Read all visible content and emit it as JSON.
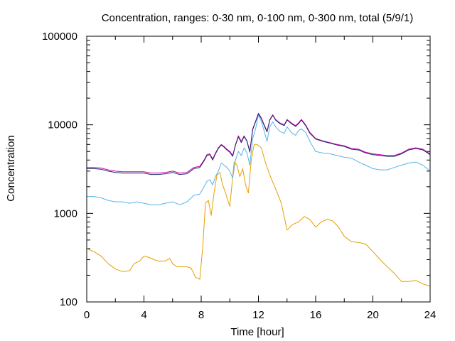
{
  "chart_data": {
    "type": "line",
    "title": "Concentration, ranges: 0-30 nm, 0-100 nm, 0-300 nm, total (5/9/1)",
    "xlabel": "Time [hour]",
    "ylabel": "Concentration",
    "xlim": [
      0,
      24
    ],
    "ylim": [
      100,
      100000
    ],
    "yscale": "log",
    "xticks": [
      0,
      4,
      8,
      12,
      16,
      20,
      24
    ],
    "xtick_labels": [
      "0",
      "4",
      "8",
      "12",
      "16",
      "20",
      "24"
    ],
    "yticks": [
      100,
      1000,
      10000,
      100000
    ],
    "ytick_labels": [
      "100",
      "1000",
      "10000",
      "100000"
    ],
    "grid": false,
    "legend": "none",
    "series": [
      {
        "color": "#e69f00",
        "x": [
          0,
          0.5,
          1,
          1.5,
          2,
          2.5,
          3,
          3.3,
          3.7,
          4,
          4.3,
          4.7,
          5,
          5.5,
          5.8,
          6,
          6.3,
          6.6,
          7,
          7.3,
          7.6,
          7.9,
          8.1,
          8.3,
          8.5,
          8.7,
          8.9,
          9.1,
          9.3,
          9.5,
          9.7,
          10,
          10.3,
          10.5,
          10.7,
          10.9,
          11.1,
          11.3,
          11.5,
          11.7,
          11.9,
          12.2,
          12.5,
          12.8,
          13.2,
          13.6,
          14,
          14.4,
          14.8,
          15.2,
          15.6,
          16,
          16.4,
          16.8,
          17.2,
          17.6,
          18,
          18.5,
          19,
          19.5,
          20,
          20.5,
          21,
          21.5,
          22,
          22.5,
          23,
          23.5,
          24
        ],
        "y": [
          400,
          370,
          330,
          270,
          235,
          220,
          225,
          270,
          290,
          330,
          320,
          300,
          290,
          290,
          310,
          270,
          250,
          250,
          250,
          240,
          190,
          180,
          400,
          1300,
          1400,
          950,
          1700,
          2700,
          2900,
          2100,
          1700,
          1200,
          3800,
          3500,
          2600,
          3200,
          2100,
          1700,
          4000,
          6000,
          6000,
          5500,
          3700,
          2700,
          1900,
          1300,
          650,
          750,
          800,
          920,
          850,
          700,
          800,
          860,
          820,
          700,
          550,
          480,
          470,
          450,
          370,
          300,
          250,
          210,
          170,
          170,
          175,
          160,
          150
        ]
      },
      {
        "color": "#56b4e9",
        "x": [
          0,
          0.5,
          1,
          1.5,
          2,
          2.5,
          3,
          3.5,
          4,
          4.5,
          5,
          5.5,
          6,
          6.5,
          7,
          7.5,
          7.9,
          8.2,
          8.4,
          8.6,
          8.8,
          9,
          9.2,
          9.4,
          9.6,
          9.8,
          10,
          10.2,
          10.4,
          10.6,
          10.8,
          11,
          11.2,
          11.4,
          11.6,
          11.8,
          12,
          12.2,
          12.4,
          12.6,
          12.8,
          13,
          13.2,
          13.5,
          13.8,
          14,
          14.3,
          14.6,
          14.8,
          15,
          15.3,
          15.6,
          16,
          16.5,
          17,
          17.5,
          18,
          18.5,
          19,
          19.5,
          20,
          20.5,
          21,
          21.5,
          22,
          22.5,
          23,
          23.5,
          24
        ],
        "y": [
          1550,
          1550,
          1500,
          1400,
          1350,
          1350,
          1300,
          1350,
          1300,
          1250,
          1250,
          1300,
          1350,
          1250,
          1350,
          1600,
          1650,
          2000,
          2300,
          2400,
          2100,
          2600,
          3000,
          3700,
          3500,
          3300,
          3000,
          2500,
          4000,
          5000,
          4500,
          5500,
          4800,
          3500,
          7000,
          9000,
          13000,
          11000,
          8500,
          6500,
          9500,
          10800,
          9500,
          8400,
          8000,
          9500,
          8200,
          7600,
          8600,
          9000,
          8200,
          6500,
          5000,
          4800,
          4700,
          4500,
          4300,
          4200,
          3800,
          3500,
          3200,
          3100,
          3100,
          3300,
          3500,
          3700,
          3800,
          3500,
          3000
        ]
      },
      {
        "color": "#d000b0",
        "x": [
          0,
          0.5,
          1,
          1.5,
          2,
          2.5,
          3,
          3.5,
          4,
          4.5,
          5,
          5.5,
          6,
          6.5,
          7,
          7.5,
          7.9,
          8.2,
          8.4,
          8.6,
          8.8,
          9,
          9.2,
          9.4,
          9.6,
          9.8,
          10,
          10.2,
          10.4,
          10.6,
          10.8,
          11,
          11.2,
          11.4,
          11.6,
          11.8,
          12,
          12.2,
          12.4,
          12.6,
          12.8,
          13,
          13.2,
          13.5,
          13.8,
          14,
          14.3,
          14.6,
          14.8,
          15,
          15.3,
          15.6,
          16,
          16.5,
          17,
          17.5,
          18,
          18.5,
          19,
          19.5,
          20,
          20.5,
          21,
          21.5,
          22,
          22.5,
          23,
          23.5,
          24
        ],
        "y": [
          3300,
          3300,
          3250,
          3100,
          3000,
          2950,
          2950,
          2950,
          2950,
          2850,
          2850,
          2900,
          3000,
          2850,
          2900,
          3300,
          3400,
          4000,
          4600,
          4700,
          4100,
          4800,
          5500,
          6000,
          5700,
          5300,
          5000,
          4500,
          6000,
          7500,
          6500,
          7500,
          6600,
          5000,
          9000,
          11000,
          13500,
          12000,
          10000,
          8500,
          11500,
          13000,
          11500,
          10500,
          10000,
          11500,
          10500,
          9800,
          10500,
          11500,
          10000,
          8200,
          7000,
          6600,
          6300,
          6000,
          5800,
          5400,
          5300,
          4900,
          4700,
          4600,
          4500,
          4500,
          4800,
          5300,
          5500,
          5300,
          4700
        ]
      },
      {
        "color": "#1f2a6b",
        "x": [
          0,
          0.5,
          1,
          1.5,
          2,
          2.5,
          3,
          3.5,
          4,
          4.5,
          5,
          5.5,
          6,
          6.5,
          7,
          7.5,
          7.9,
          8.2,
          8.4,
          8.6,
          8.8,
          9,
          9.2,
          9.4,
          9.6,
          9.8,
          10,
          10.2,
          10.4,
          10.6,
          10.8,
          11,
          11.2,
          11.4,
          11.6,
          11.8,
          12,
          12.2,
          12.4,
          12.6,
          12.8,
          13,
          13.2,
          13.5,
          13.8,
          14,
          14.3,
          14.6,
          14.8,
          15,
          15.3,
          15.6,
          16,
          16.5,
          17,
          17.5,
          18,
          18.5,
          19,
          19.5,
          20,
          20.5,
          21,
          21.5,
          22,
          22.5,
          23,
          23.5,
          24
        ],
        "y": [
          3200,
          3200,
          3150,
          3000,
          2900,
          2850,
          2850,
          2850,
          2850,
          2750,
          2750,
          2800,
          2900,
          2750,
          2800,
          3200,
          3300,
          3900,
          4500,
          4600,
          4000,
          4700,
          5400,
          5900,
          5600,
          5200,
          4900,
          4400,
          5900,
          7300,
          6300,
          7400,
          6500,
          4900,
          8800,
          10800,
          13300,
          11800,
          9800,
          8300,
          11300,
          12800,
          11300,
          10300,
          9800,
          11300,
          10300,
          9600,
          10300,
          11300,
          9800,
          8000,
          6900,
          6500,
          6200,
          5900,
          5700,
          5300,
          5200,
          4800,
          4600,
          4500,
          4400,
          4400,
          4700,
          5200,
          5400,
          5200,
          4600
        ]
      }
    ]
  }
}
